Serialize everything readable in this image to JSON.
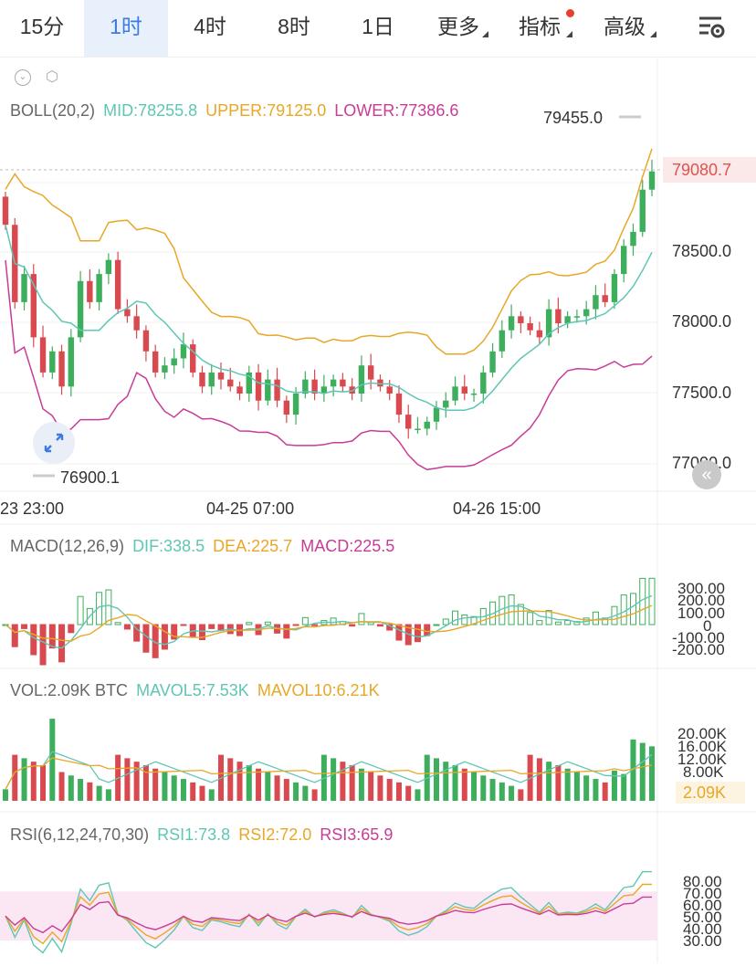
{
  "tabs": [
    {
      "label": "15分",
      "active": false
    },
    {
      "label": "1时",
      "active": true
    },
    {
      "label": "4时",
      "active": false
    },
    {
      "label": "8时",
      "active": false
    },
    {
      "label": "1日",
      "active": false
    },
    {
      "label": "更多",
      "active": false
    },
    {
      "label": "指标",
      "active": false
    },
    {
      "label": "高级",
      "active": false
    }
  ],
  "boll": {
    "name": "BOLL(20,2)",
    "mid": "MID:78255.8",
    "upper": "UPPER:79125.0",
    "lower": "LOWER:77386.6"
  },
  "price": {
    "high_label": "79455.0",
    "low_label": "76900.1",
    "last_price": "79080.7",
    "axis": [
      "78500.0",
      "78000.0",
      "77500.0",
      "77000.0"
    ],
    "times": [
      "23 23:00",
      "04-25 07:00",
      "04-26 15:00"
    ]
  },
  "macd": {
    "name": "MACD(12,26,9)",
    "dif": "DIF:338.5",
    "dea": "DEA:225.7",
    "macd": "MACD:225.5",
    "axis": [
      "300.00",
      "200.00",
      "100.00",
      "0",
      "-100.00",
      "-200.00"
    ]
  },
  "vol": {
    "name": "VOL:2.09K BTC",
    "mavol5": "MAVOL5:7.53K",
    "mavol10": "MAVOL10:6.21K",
    "axis": [
      "20.00K",
      "16.00K",
      "12.00K",
      "8.00K"
    ],
    "current": "2.09K"
  },
  "rsi": {
    "name": "RSI(6,12,24,70,30)",
    "rsi1": "RSI1:73.8",
    "rsi2": "RSI2:72.0",
    "rsi3": "RSI3:65.9",
    "axis": [
      "80.00",
      "70.00",
      "60.00",
      "50.00",
      "40.00",
      "30.00"
    ]
  },
  "colors": {
    "up": "#3cae5c",
    "down": "#d84a4f",
    "mid": "#5fc6b5",
    "upper": "#e8a726",
    "lower": "#c83c96",
    "accent": "#3b7be3",
    "last": "#e0524f"
  },
  "chart_data": [
    {
      "type": "candlestick",
      "title": "BOLL(20,2)",
      "y_range": [
        76900,
        79500
      ],
      "close": [
        78700,
        78150,
        78350,
        77900,
        77650,
        77800,
        77550,
        77900,
        78300,
        78150,
        78350,
        78450,
        78100,
        78050,
        77950,
        77800,
        77650,
        77700,
        77750,
        77850,
        77650,
        77550,
        77650,
        77600,
        77550,
        77500,
        77650,
        77450,
        77600,
        77450,
        77350,
        77500,
        77600,
        77500,
        77550,
        77600,
        77550,
        77500,
        77700,
        77600,
        77550,
        77500,
        77350,
        77250,
        77250,
        77300,
        77400,
        77450,
        77550,
        77500,
        77500,
        77650,
        77800,
        77950,
        78050,
        78000,
        77950,
        77900,
        78100,
        78000,
        78050,
        78050,
        78100,
        78200,
        78150,
        78350,
        78550,
        78650,
        78950,
        79080
      ]
    },
    {
      "type": "bar",
      "title": "MACD(12,26,9)",
      "y_range": [
        -250,
        330
      ]
    },
    {
      "type": "bar",
      "title": "VOL",
      "y_range": [
        0,
        22000
      ]
    },
    {
      "type": "line",
      "title": "RSI(6,12,24,70,30)",
      "y_range": [
        20,
        90
      ]
    }
  ]
}
